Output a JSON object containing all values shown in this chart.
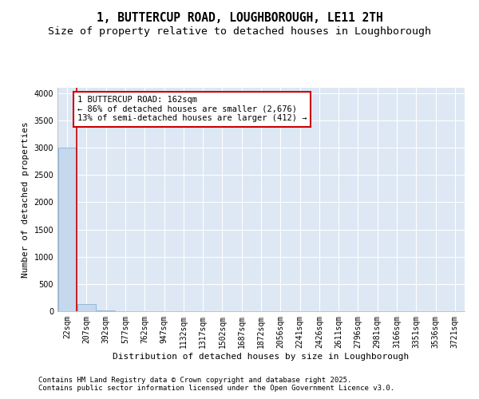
{
  "title": "1, BUTTERCUP ROAD, LOUGHBOROUGH, LE11 2TH",
  "subtitle": "Size of property relative to detached houses in Loughborough",
  "xlabel": "Distribution of detached houses by size in Loughborough",
  "ylabel": "Number of detached properties",
  "bar_labels": [
    "22sqm",
    "207sqm",
    "392sqm",
    "577sqm",
    "762sqm",
    "947sqm",
    "1132sqm",
    "1317sqm",
    "1502sqm",
    "1687sqm",
    "1872sqm",
    "2056sqm",
    "2241sqm",
    "2426sqm",
    "2611sqm",
    "2796sqm",
    "2981sqm",
    "3166sqm",
    "3351sqm",
    "3536sqm",
    "3721sqm"
  ],
  "bar_values": [
    3000,
    125,
    10,
    3,
    1,
    1,
    0,
    0,
    0,
    0,
    0,
    0,
    0,
    0,
    0,
    0,
    0,
    0,
    0,
    0,
    0
  ],
  "bar_color": "#c5d8ee",
  "bar_edge_color": "#8ab0d4",
  "vline_x": 0.5,
  "vline_color": "#cc0000",
  "annotation_text": "1 BUTTERCUP ROAD: 162sqm\n← 86% of detached houses are smaller (2,676)\n13% of semi-detached houses are larger (412) →",
  "box_color": "#ffffff",
  "box_edge_color": "#cc0000",
  "ylim": [
    0,
    4100
  ],
  "yticks": [
    0,
    500,
    1000,
    1500,
    2000,
    2500,
    3000,
    3500,
    4000
  ],
  "background_color": "#dde8f4",
  "grid_color": "#ffffff",
  "footer_line1": "Contains HM Land Registry data © Crown copyright and database right 2025.",
  "footer_line2": "Contains public sector information licensed under the Open Government Licence v3.0.",
  "title_fontsize": 10.5,
  "subtitle_fontsize": 9.5,
  "tick_fontsize": 7,
  "ylabel_fontsize": 8,
  "xlabel_fontsize": 8,
  "footer_fontsize": 6.5
}
